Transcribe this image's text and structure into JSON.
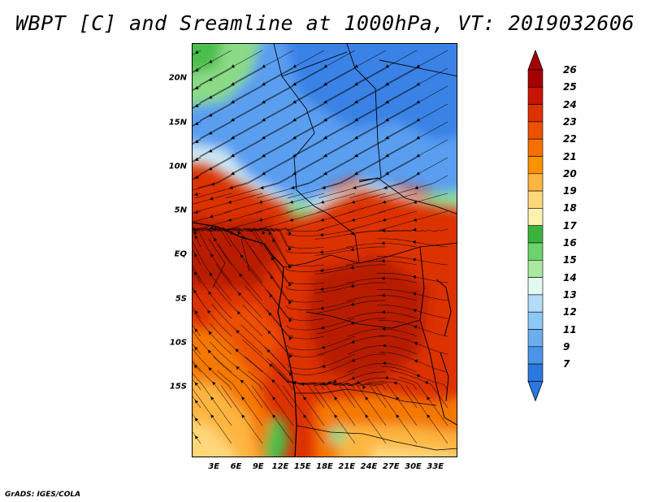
{
  "title": "WBPT [C] and Sreamline at 1000hPa, VT: 2019032606",
  "credit": "GrADS: IGES/COLA",
  "map": {
    "lon_range": [
      0,
      36
    ],
    "lat_range": [
      -23,
      24
    ],
    "lat_ticks": [
      {
        "value": 20,
        "label": "20N"
      },
      {
        "value": 15,
        "label": "15N"
      },
      {
        "value": 10,
        "label": "10N"
      },
      {
        "value": 5,
        "label": "5N"
      },
      {
        "value": 0,
        "label": "EQ"
      },
      {
        "value": -5,
        "label": "5S"
      },
      {
        "value": -10,
        "label": "10S"
      },
      {
        "value": -15,
        "label": "15S"
      }
    ],
    "lon_ticks": [
      {
        "value": 3,
        "label": "3E"
      },
      {
        "value": 6,
        "label": "6E"
      },
      {
        "value": 9,
        "label": "9E"
      },
      {
        "value": 12,
        "label": "12E"
      },
      {
        "value": 15,
        "label": "15E"
      },
      {
        "value": 18,
        "label": "18E"
      },
      {
        "value": 21,
        "label": "21E"
      },
      {
        "value": 24,
        "label": "24E"
      },
      {
        "value": 27,
        "label": "27E"
      },
      {
        "value": 30,
        "label": "30E"
      },
      {
        "value": 33,
        "label": "33E"
      }
    ]
  },
  "colorbar": {
    "levels": [
      "26",
      "25",
      "24",
      "23",
      "22",
      "21",
      "20",
      "19",
      "18",
      "17",
      "16",
      "15",
      "14",
      "13",
      "12",
      "11",
      "9",
      "7"
    ],
    "colors": [
      "#a50000",
      "#c81400",
      "#dc3200",
      "#ec5000",
      "#f57000",
      "#fb9200",
      "#fdb540",
      "#fed77a",
      "#fdf1b0",
      "#3cb43c",
      "#6cd26c",
      "#a8e8a0",
      "#e2f8f0",
      "#b2dcf8",
      "#8ec8f4",
      "#6aaef0",
      "#4a94ea",
      "#2a78e0"
    ],
    "top_arrow_color": "#a50000",
    "bottom_arrow_color": "#2a78e0"
  },
  "field_colors": {
    "deep_red": "#b81e00",
    "red": "#dc3200",
    "orange_red": "#ec5000",
    "orange": "#f57800",
    "light_orange": "#fdb540",
    "pale_yellow": "#fed77a",
    "green": "#4cbe4c",
    "light_green": "#8ada86",
    "pale_blue": "#cce8f4",
    "light_blue": "#8ec8f4",
    "blue": "#5a9ef0",
    "dark_blue": "#3a82e6"
  }
}
